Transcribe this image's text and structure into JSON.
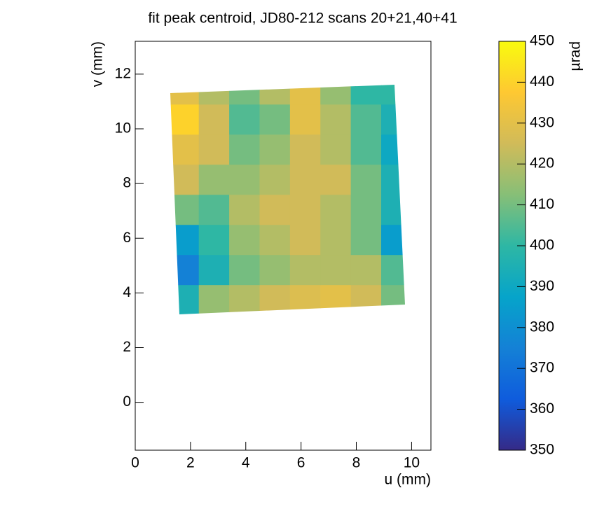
{
  "chart_data": {
    "type": "heatmap",
    "title": "fit peak centroid, JD80-212 scans 20+21,40+41",
    "xlabel": "u (mm)",
    "ylabel": "v (mm)",
    "zlabel": "µrad",
    "xlim": [
      0,
      10.7
    ],
    "xticks": [
      0,
      2,
      4,
      6,
      8,
      10
    ],
    "ylim": [
      -1.75,
      13.2
    ],
    "yticks": [
      0,
      2,
      4,
      6,
      8,
      10,
      12
    ],
    "zlim": [
      350,
      450
    ],
    "zticks": [
      350,
      360,
      370,
      380,
      390,
      400,
      410,
      420,
      430,
      440,
      450
    ],
    "colormap": [
      "#352a87",
      "#0f5cdd",
      "#1481d6",
      "#06a4ca",
      "#2eb7a4",
      "#87bf77",
      "#d1bb59",
      "#fec832",
      "#f9fb0e"
    ],
    "x_edges": [
      1.2,
      2.3,
      3.4,
      4.5,
      5.6,
      6.7,
      7.8,
      8.9,
      10.0
    ],
    "y_edges": [
      3.2,
      4.3,
      5.4,
      6.5,
      7.6,
      8.7,
      9.8,
      10.9,
      12.0
    ],
    "z": [
      [
        395,
        415,
        420,
        425,
        428,
        430,
        425,
        410
      ],
      [
        375,
        395,
        410,
        415,
        420,
        420,
        420,
        405
      ],
      [
        385,
        400,
        415,
        420,
        425,
        420,
        410,
        385
      ],
      [
        410,
        405,
        420,
        425,
        425,
        420,
        410,
        395
      ],
      [
        425,
        415,
        415,
        420,
        425,
        425,
        410,
        395
      ],
      [
        430,
        425,
        410,
        415,
        425,
        420,
        405,
        390
      ],
      [
        440,
        425,
        405,
        410,
        430,
        420,
        405,
        395
      ],
      [
        430,
        420,
        410,
        420,
        430,
        415,
        400,
        400
      ]
    ]
  }
}
